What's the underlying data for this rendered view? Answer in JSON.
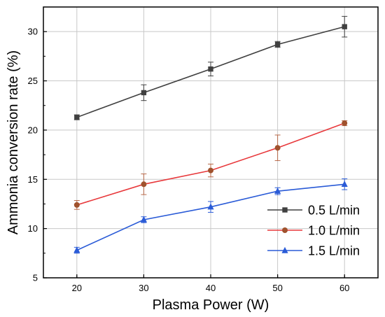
{
  "chart_data": {
    "type": "line",
    "xlabel": "Plasma Power (W)",
    "ylabel": "Ammonia conversion rate (%)",
    "x": [
      20,
      30,
      40,
      50,
      60
    ],
    "xlim": [
      15,
      65
    ],
    "ylim": [
      5,
      32.5
    ],
    "xticks": [
      20,
      30,
      40,
      50,
      60
    ],
    "yticks": [
      5,
      10,
      15,
      20,
      25,
      30
    ],
    "grid": true,
    "legend_position": "bottom-right",
    "series": [
      {
        "name": "0.5 L/min",
        "color": "#404040",
        "marker": "square",
        "values": [
          21.3,
          23.8,
          26.2,
          28.7,
          30.5
        ],
        "errors": [
          0.25,
          0.8,
          0.7,
          0.3,
          1.05
        ]
      },
      {
        "name": "1.0 L/min",
        "color": "#e8393c",
        "marker_color": "#a0522d",
        "marker": "circle",
        "values": [
          12.4,
          14.5,
          15.9,
          18.2,
          20.7
        ],
        "errors": [
          0.45,
          1.05,
          0.65,
          1.3,
          0.25
        ]
      },
      {
        "name": "1.5 L/min",
        "color": "#2a5bd7",
        "marker": "triangle",
        "values": [
          7.8,
          10.9,
          12.2,
          13.8,
          14.5
        ],
        "errors": [
          0.3,
          0.3,
          0.55,
          0.35,
          0.55
        ]
      }
    ]
  }
}
